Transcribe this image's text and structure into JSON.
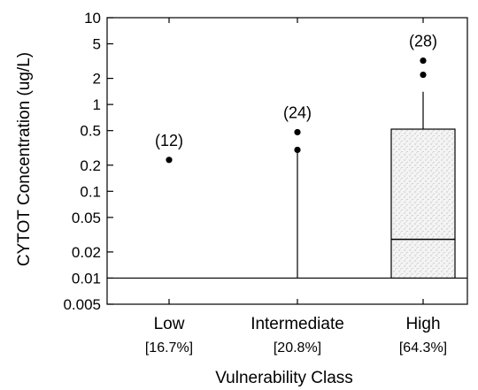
{
  "chart_data": {
    "type": "box",
    "ylabel": "CYTOT Concentration (ug/L)",
    "xlabel": "Vulnerability Class",
    "y_scale": "log",
    "ylim": [
      0.005,
      10
    ],
    "y_ticks": [
      0.005,
      0.01,
      0.02,
      0.05,
      0.1,
      0.2,
      0.5,
      1,
      2,
      5,
      10
    ],
    "y_tick_labels": [
      "0.005",
      "0.01",
      "0.02",
      "0.05",
      "0.1",
      "0.2",
      "0.5",
      "1",
      "2",
      "5",
      "10"
    ],
    "reference_line": 0.01,
    "categories": [
      {
        "name": "Low",
        "detection": "[16.7%]",
        "n_label": "(12)",
        "outliers": [
          0.23
        ]
      },
      {
        "name": "Intermediate",
        "detection": "[20.8%]",
        "n_label": "(24)",
        "whisker_low": 0.01,
        "whisker_high": 0.3,
        "outliers": [
          0.3,
          0.48
        ]
      },
      {
        "name": "High",
        "detection": "[64.3%]",
        "n_label": "(28)",
        "q1": 0.01,
        "median": 0.028,
        "q3": 0.52,
        "whisker_low": 0.01,
        "whisker_high": 1.4,
        "outliers": [
          2.2,
          3.2
        ]
      }
    ]
  }
}
